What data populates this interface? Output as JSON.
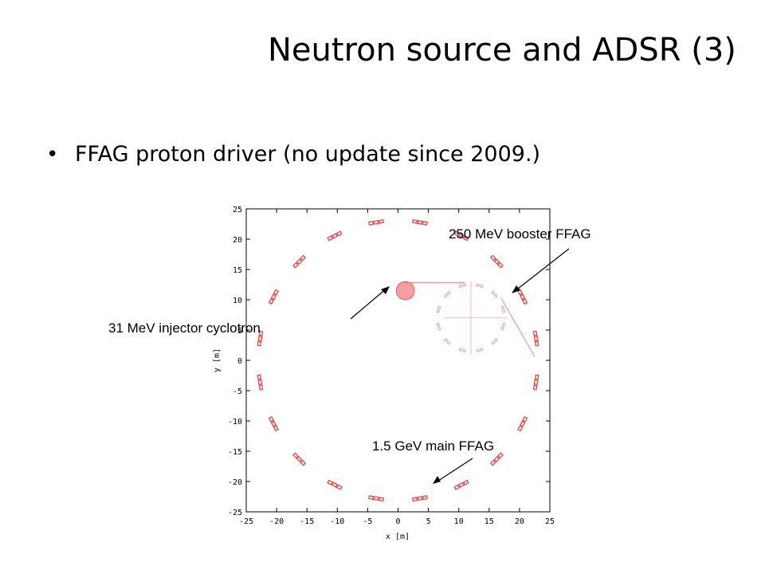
{
  "slide": {
    "title": "Neutron source and ADSR (3)",
    "bullet_symbol": "•",
    "bullet": "FFAG proton driver (no update since 2009.)"
  },
  "colors": {
    "magnet": "#e04848",
    "cyclotron": "#f4a0a0",
    "lines": "#e08080",
    "booster": "#d9a0a0"
  },
  "chart_data": {
    "type": "scatter",
    "title": "",
    "xlabel": "x [m]",
    "ylabel": "y [m]",
    "xlim": [
      -25,
      25
    ],
    "ylim": [
      -25,
      25
    ],
    "xticks": [
      -25,
      -20,
      -15,
      -10,
      -5,
      0,
      5,
      10,
      15,
      20,
      25
    ],
    "yticks": [
      -25,
      -20,
      -15,
      -10,
      -5,
      0,
      5,
      10,
      15,
      20,
      25
    ],
    "grid": false,
    "series": [
      {
        "element": "main-ring-magnets",
        "shape": "ring",
        "center": [
          0,
          0
        ],
        "radius": 23,
        "count": 20
      },
      {
        "element": "booster-ring-magnets",
        "shape": "ring",
        "center": [
          12,
          7
        ],
        "radius": 5.5,
        "count": 12
      },
      {
        "element": "injector-cyclotron",
        "shape": "disk",
        "center": [
          1.2,
          11.5
        ],
        "radius": 1.5
      }
    ],
    "annotations": [
      {
        "text": "250 MeV booster FFAG"
      },
      {
        "text": "31 MeV injector cyclotron"
      },
      {
        "text": "1.5 GeV main FFAG"
      }
    ]
  }
}
